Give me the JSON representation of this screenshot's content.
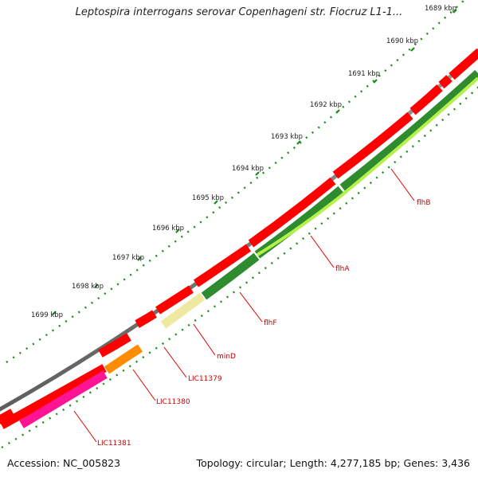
{
  "title": "Leptospira interrogans serovar Copenhageni str. Fiocruz L1-1...",
  "accession": "Accession: NC_005823",
  "topology": "Topology: circular; Length: 4,277,185 bp; Genes: 3,436",
  "colors": {
    "backbone": "#7a7a7a",
    "cds": "#ff0000",
    "tick": "#1a8a1a",
    "label": "#cc0000",
    "label_line": "#dd0000"
  },
  "scale": [
    {
      "label": "1689 kbp"
    },
    {
      "label": "1690 kbp"
    },
    {
      "label": "1691 kbp"
    },
    {
      "label": "1692 kbp"
    },
    {
      "label": "1693 kbp"
    },
    {
      "label": "1694 kbp"
    },
    {
      "label": "1695 kbp"
    },
    {
      "label": "1696 kbp"
    },
    {
      "label": "1697 kbp"
    },
    {
      "label": "1698 kbp"
    },
    {
      "label": "1699 kbp"
    }
  ],
  "genes": [
    {
      "name": "flhB",
      "color": "#2e8b2e"
    },
    {
      "name": "flhA",
      "color": "#2e8b2e"
    },
    {
      "name": "flhF",
      "color": "#2e8b2e"
    },
    {
      "name": "minD",
      "color": "#efe8a0"
    },
    {
      "name": "LIC11379",
      "color": "#efe8a0"
    },
    {
      "name": "LIC11380",
      "color": "#ff8c00"
    },
    {
      "name": "LIC11381",
      "color": "#ff1493"
    }
  ]
}
